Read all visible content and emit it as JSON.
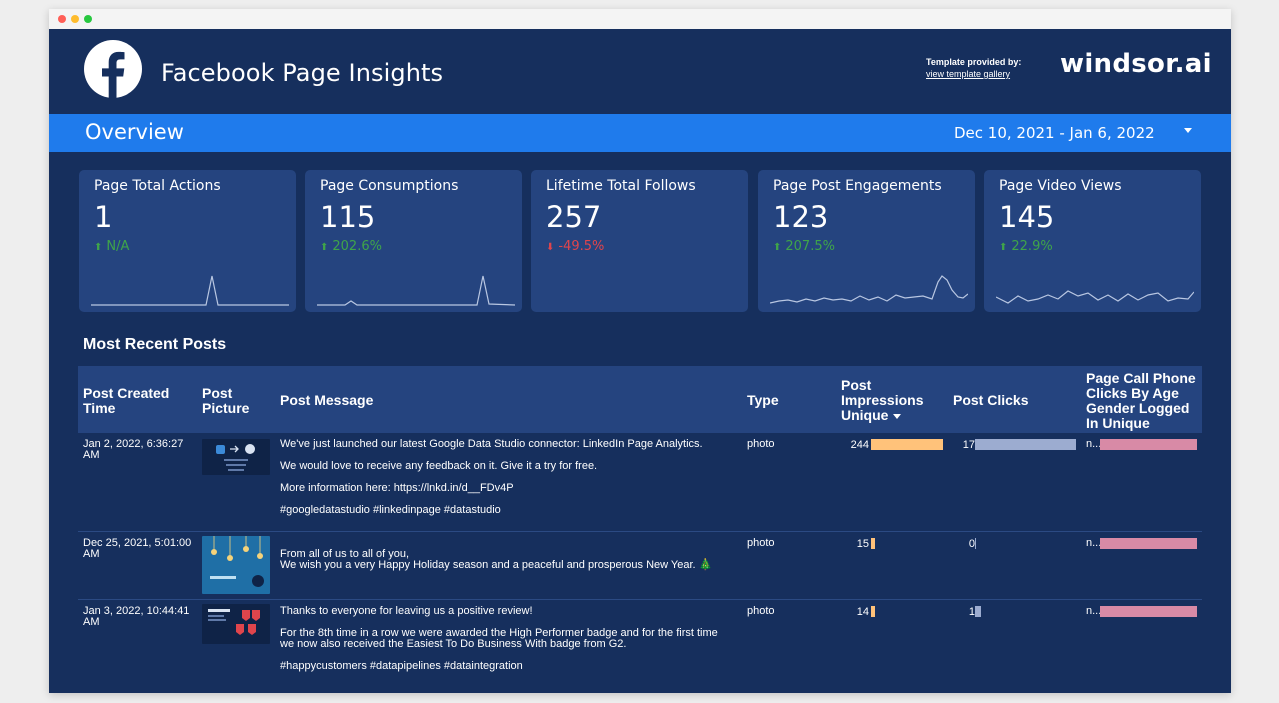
{
  "header": {
    "title": "Facebook Page Insights",
    "template_label": "Template provided by:",
    "template_link": "view template gallery",
    "brand": "windsor.ai"
  },
  "overview": {
    "title": "Overview",
    "date_range": "Dec 10, 2021 - Jan 6, 2022"
  },
  "cards": [
    {
      "label": "Page Total Actions",
      "value": "1",
      "delta": "N/A",
      "direction": "up"
    },
    {
      "label": "Page Consumptions",
      "value": "115",
      "delta": "202.6%",
      "direction": "up"
    },
    {
      "label": "Lifetime Total Follows",
      "value": "257",
      "delta": "-49.5%",
      "direction": "down"
    },
    {
      "label": "Page Post Engagements",
      "value": "123",
      "delta": "207.5%",
      "direction": "up"
    },
    {
      "label": "Page Video Views",
      "value": "145",
      "delta": "22.9%",
      "direction": "up"
    }
  ],
  "section_title": "Most Recent Posts",
  "table": {
    "columns": {
      "created": "Post Created Time",
      "picture": "Post Picture",
      "message": "Post Message",
      "type": "Type",
      "impressions": "Post Impressions Unique",
      "clicks": "Post Clicks",
      "call_clicks": "Page Call Phone Clicks By Age Gender Logged In Unique"
    },
    "rows": [
      {
        "created": "Jan 2, 2022, 6:36:27 AM",
        "message": [
          "We've just launched our latest Google Data Studio connector: LinkedIn Page Analytics.",
          "We would love to receive any feedback on it. Give it a try for free.",
          "More information here: https://lnkd.in/d__FDv4P",
          "#googledatastudio #linkedinpage #datastudio"
        ],
        "type": "photo",
        "impressions": "244",
        "impressions_fraction": 1.0,
        "clicks": "17",
        "clicks_fraction": 1.0,
        "call_clicks": "n..."
      },
      {
        "created": "Dec 25, 2021, 5:01:00 AM",
        "message": [
          "From all of us to all of you,\nWe wish you a very Happy Holiday season and a peaceful and prosperous New Year. 🎄"
        ],
        "type": "photo",
        "impressions": "15",
        "impressions_fraction": 0.06,
        "clicks": "0",
        "clicks_fraction": 0.0,
        "call_clicks": "n..."
      },
      {
        "created": "Jan 3, 2022, 10:44:41 AM",
        "message": [
          "Thanks to everyone for leaving us a positive review!",
          "For the 8th time in a row we were awarded the High Performer badge and for the first time we now also received the Easiest To Do Business With badge from G2.",
          "#happycustomers #datapipelines #dataintegration"
        ],
        "type": "photo",
        "impressions": "14",
        "impressions_fraction": 0.057,
        "clicks": "1",
        "clicks_fraction": 0.06,
        "call_clicks": "n..."
      }
    ]
  },
  "colors": {
    "background": "#162f5d",
    "overview_bar": "#1f7bec",
    "card": "#25447f",
    "positive": "#3fa44a",
    "negative": "#e0454c",
    "impressions_bar": "#ffc27a",
    "clicks_bar": "#9cacd0",
    "call_clicks_bar": "#d88aa6"
  }
}
